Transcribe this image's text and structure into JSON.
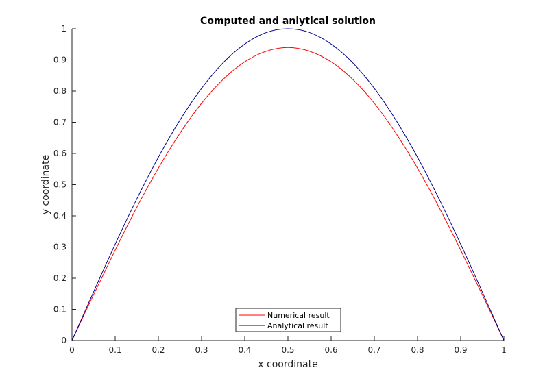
{
  "chart_data": {
    "type": "line",
    "title": "Computed and anlytical solution",
    "xlabel": "x coordinate",
    "ylabel": "y coordinate",
    "xlim": [
      0,
      1
    ],
    "ylim": [
      0,
      1
    ],
    "xticks": [
      0,
      0.1,
      0.2,
      0.3,
      0.4,
      0.5,
      0.6,
      0.7,
      0.8,
      0.9,
      1
    ],
    "xtick_labels": [
      "0",
      "0.1",
      "0.2",
      "0.3",
      "0.4",
      "0.5",
      "0.6",
      "0.7",
      "0.8",
      "0.9",
      "1"
    ],
    "yticks": [
      0,
      0.1,
      0.2,
      0.3,
      0.4,
      0.5,
      0.6,
      0.7,
      0.8,
      0.9,
      1
    ],
    "ytick_labels": [
      "0",
      "0.1",
      "0.2",
      "0.3",
      "0.4",
      "0.5",
      "0.6",
      "0.7",
      "0.8",
      "0.9",
      "1"
    ],
    "grid": false,
    "legend_position": "bottom-center",
    "x": [
      0,
      0.05,
      0.1,
      0.15,
      0.2,
      0.25,
      0.3,
      0.35,
      0.4,
      0.45,
      0.5,
      0.55,
      0.6,
      0.65,
      0.7,
      0.75,
      0.8,
      0.85,
      0.9,
      0.95,
      1
    ],
    "series": [
      {
        "name": "Numerical result",
        "color": "#ff0000",
        "values": [
          0,
          0.147,
          0.29,
          0.427,
          0.553,
          0.665,
          0.761,
          0.838,
          0.894,
          0.928,
          0.94,
          0.928,
          0.894,
          0.838,
          0.761,
          0.665,
          0.553,
          0.427,
          0.29,
          0.147,
          0
        ]
      },
      {
        "name": "Analytical result",
        "color": "#00008b",
        "values": [
          0,
          0.156,
          0.309,
          0.454,
          0.588,
          0.707,
          0.809,
          0.891,
          0.951,
          0.988,
          1.0,
          0.988,
          0.951,
          0.891,
          0.809,
          0.707,
          0.588,
          0.454,
          0.309,
          0.156,
          0
        ]
      }
    ]
  }
}
